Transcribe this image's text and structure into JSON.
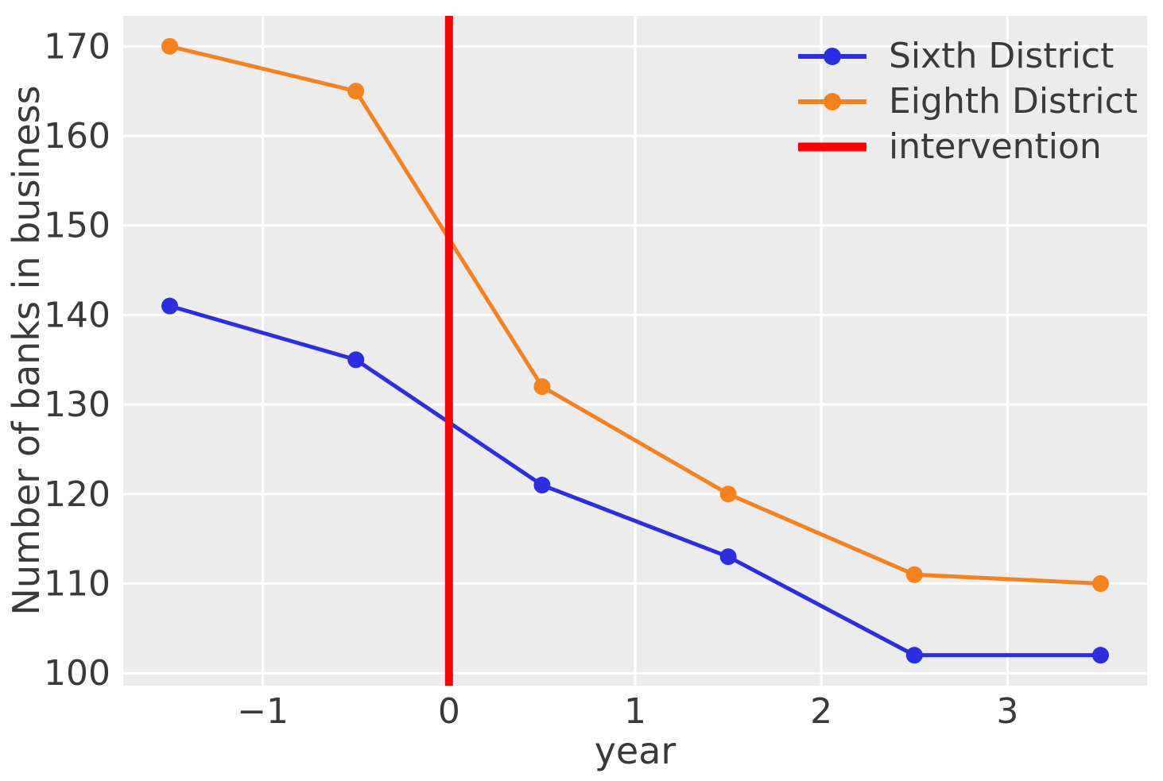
{
  "figure": {
    "background": "#ffffff",
    "plot_background": "#ececec",
    "grid_color": "#ffffff",
    "text_color": "#3a3a3a"
  },
  "chart_data": {
    "type": "line",
    "title": "",
    "xlabel": "year",
    "ylabel": "Number of banks in business",
    "grid": true,
    "xlim": [
      -1.75,
      3.75
    ],
    "ylim": [
      98.6,
      173.4
    ],
    "x_ticks": [
      -1,
      0,
      1,
      2,
      3
    ],
    "x_tick_labels": [
      "−1",
      "0",
      "1",
      "2",
      "3"
    ],
    "y_ticks": [
      100,
      110,
      120,
      130,
      140,
      150,
      160,
      170
    ],
    "y_tick_labels": [
      "100",
      "110",
      "120",
      "130",
      "140",
      "150",
      "160",
      "170"
    ],
    "x": [
      -1.5,
      -0.5,
      0.5,
      1.5,
      2.5,
      3.5
    ],
    "series": [
      {
        "name": "Sixth District",
        "color": "#2d2de2",
        "marker": "circle",
        "values": [
          141,
          135,
          121,
          113,
          102,
          102
        ]
      },
      {
        "name": "Eighth District",
        "color": "#f6821e",
        "marker": "circle",
        "values": [
          170,
          165,
          132,
          120,
          111,
          110
        ]
      }
    ],
    "intervention": {
      "label": "intervention",
      "x": 0,
      "color": "#ff0000"
    },
    "legend": {
      "position": "upper right",
      "entries": [
        "Sixth District",
        "Eighth District",
        "intervention"
      ]
    }
  }
}
